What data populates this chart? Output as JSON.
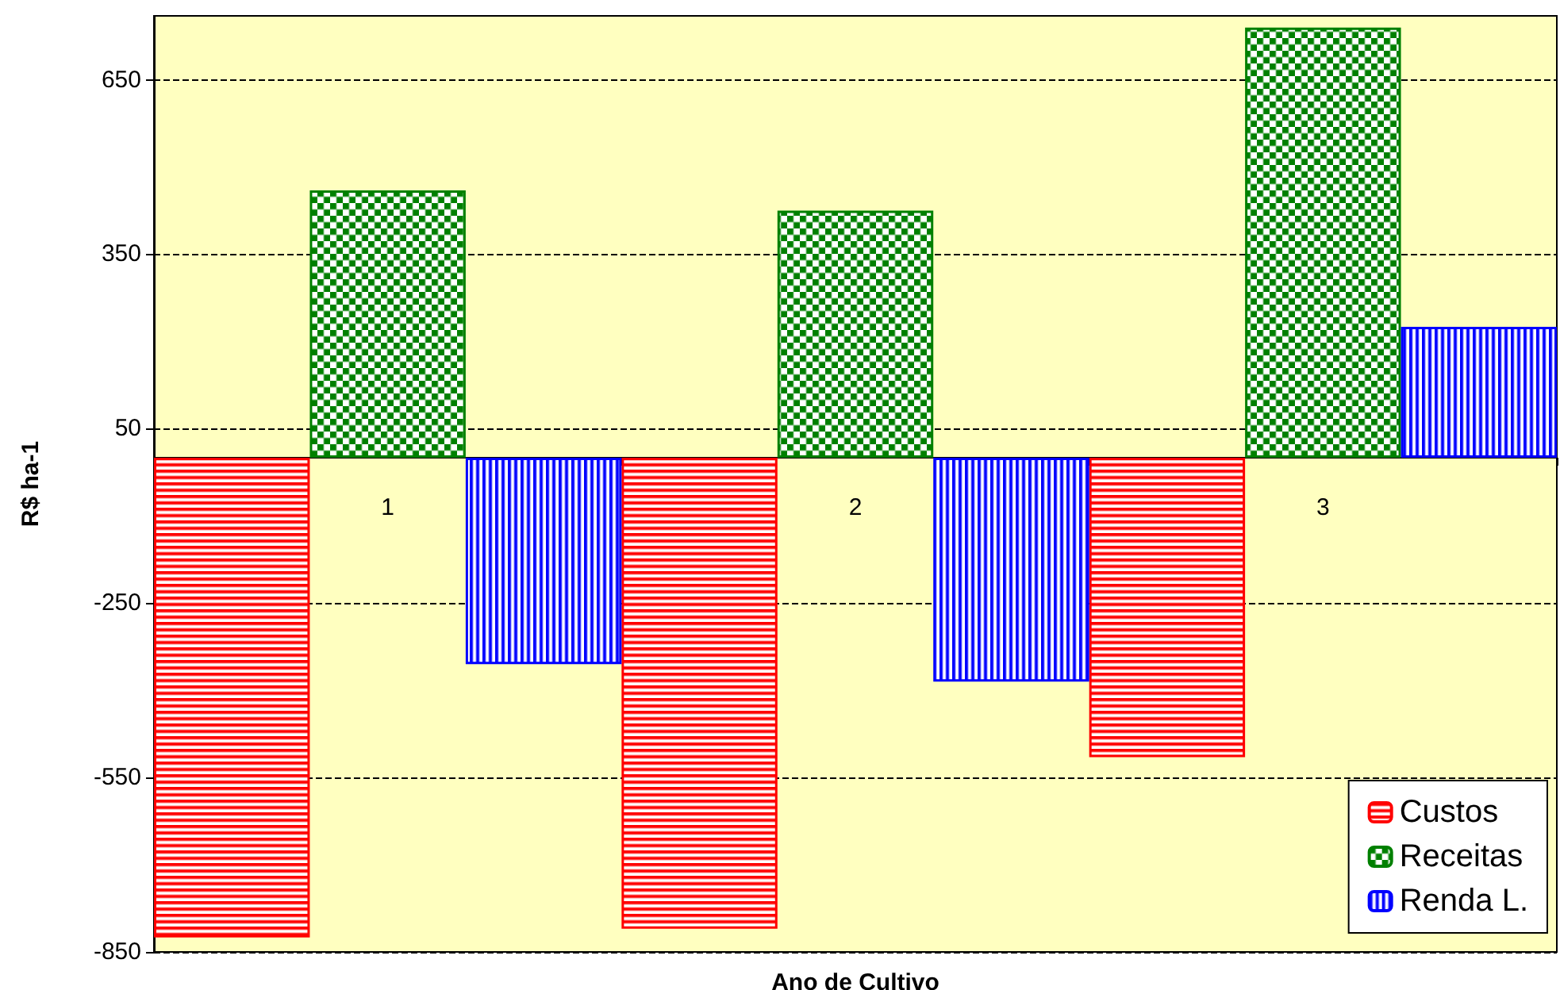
{
  "chart_data": {
    "type": "bar",
    "xlabel": "Ano de Cultivo",
    "ylabel": "R$ ha-1",
    "categories": [
      "1",
      "2",
      "3"
    ],
    "series": [
      {
        "name": "Custos",
        "color": "#ff0000",
        "values": [
          -825,
          -810,
          -515
        ]
      },
      {
        "name": "Receitas",
        "color": "#008000",
        "values": [
          460,
          425,
          740
        ]
      },
      {
        "name": "Renda L.",
        "color": "#0000ff",
        "values": [
          -355,
          -385,
          225
        ]
      }
    ],
    "ylim": [
      -850,
      760
    ],
    "yticks": [
      -850,
      -550,
      -250,
      50,
      350,
      650
    ],
    "grid": "y",
    "legend": "bottom right"
  }
}
